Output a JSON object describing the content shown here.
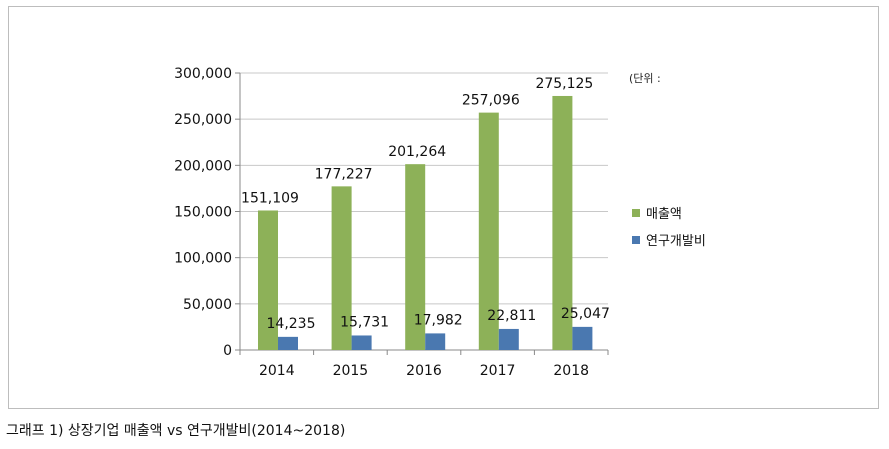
{
  "chart_data": {
    "type": "bar",
    "categories": [
      "2014",
      "2015",
      "2016",
      "2017",
      "2018"
    ],
    "series": [
      {
        "name": "매출액",
        "values": [
          151109,
          177227,
          201264,
          257096,
          275125
        ],
        "color": "#8db158"
      },
      {
        "name": "연구개발비",
        "values": [
          14235,
          15731,
          17982,
          22811,
          25047
        ],
        "color": "#4a78b0"
      }
    ],
    "value_labels": [
      [
        "151,109",
        "177,227",
        "201,264",
        "257,096",
        "275,125"
      ],
      [
        "14,235",
        "15,731",
        "17,982",
        "22,811",
        "25,047"
      ]
    ],
    "yticks": [
      "0",
      "50,000",
      "100,000",
      "150,000",
      "200,000",
      "250,000",
      "300,000"
    ],
    "ylim": [
      0,
      300000
    ],
    "grid": true,
    "legend_position": "right",
    "title": "",
    "xlabel": "",
    "ylabel": ""
  },
  "unit_note": "(단위 :",
  "caption": "그래프 1) 상장기업 매출액 vs 연구개발비(2014~2018)"
}
